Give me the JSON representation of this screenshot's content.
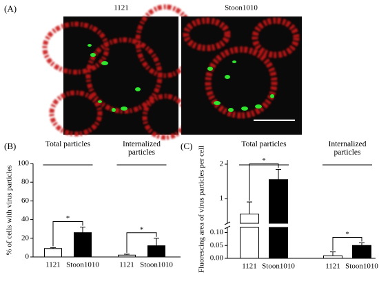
{
  "panel_labels": [
    "(A)",
    "(B)",
    "(C)"
  ],
  "image_labels": [
    "1121",
    "Stoon1010"
  ],
  "chart_data": [
    {
      "type": "bar",
      "ylabel": "% of cells with virus particles",
      "categories": [
        "Total particles",
        "Internalized particles"
      ],
      "series": [
        {
          "name": "1121",
          "color": "#ffffff",
          "values": [
            9,
            2
          ],
          "errors": [
            1,
            1
          ]
        },
        {
          "name": "Stoon1010",
          "color": "#000000",
          "values": [
            26,
            12
          ],
          "errors": [
            6,
            8
          ]
        }
      ],
      "significance": [
        "*",
        "*"
      ],
      "ylim": [
        0,
        100
      ],
      "yticks": [
        0,
        20,
        40,
        60,
        80,
        100
      ]
    },
    {
      "type": "bar",
      "ylabel": "Fluorescing area of virus particles per cell",
      "categories": [
        "Total particles",
        "Internalized particles"
      ],
      "series": [
        {
          "name": "1121",
          "color": "#ffffff",
          "values": [
            0.55,
            0.01
          ],
          "errors": [
            0.35,
            0.015
          ]
        },
        {
          "name": "Stoon1010",
          "color": "#000000",
          "values": [
            1.55,
            0.05
          ],
          "errors": [
            0.3,
            0.01
          ]
        }
      ],
      "significance": [
        "*",
        "*"
      ],
      "segments": [
        {
          "ylim": [
            0,
            0.12
          ],
          "yticks": [
            {
              "value": 0,
              "label": "0.00"
            },
            {
              "value": 0.05,
              "label": "0.05"
            },
            {
              "value": 0.1,
              "label": "0.10"
            }
          ]
        },
        {
          "ylim": [
            0.28,
            2.12
          ],
          "yticks": [
            1,
            2
          ]
        }
      ]
    }
  ]
}
